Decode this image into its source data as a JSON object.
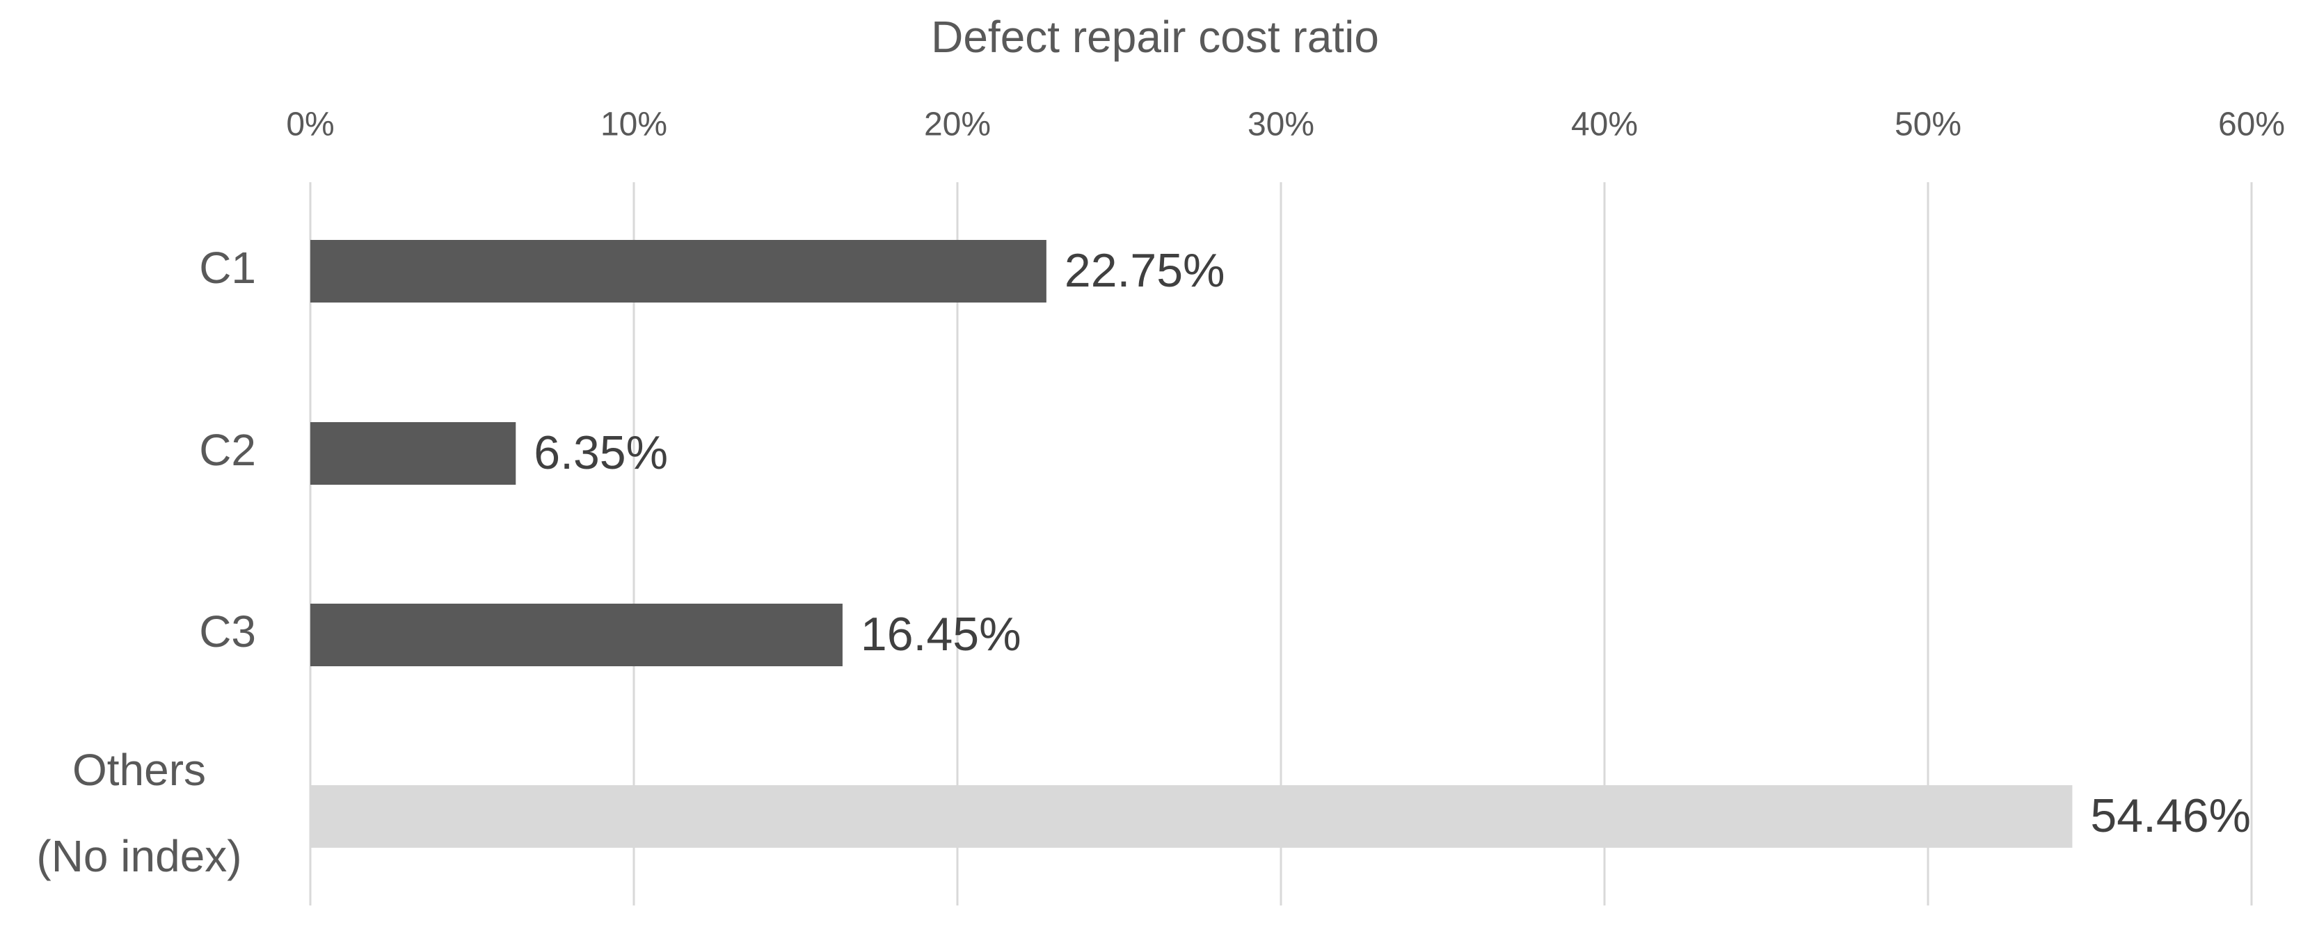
{
  "chart_data": {
    "type": "bar",
    "orientation": "horizontal",
    "title": "Defect repair cost ratio",
    "xlabel": "",
    "ylabel": "",
    "xlim": [
      0,
      60
    ],
    "x_ticks": [
      "0%",
      "10%",
      "20%",
      "30%",
      "40%",
      "50%",
      "60%"
    ],
    "x_tick_values": [
      0,
      10,
      20,
      30,
      40,
      50,
      60
    ],
    "categories": [
      [
        "C1"
      ],
      [
        "C2"
      ],
      [
        "C3"
      ],
      [
        "Others",
        "(No index)"
      ]
    ],
    "values": [
      22.75,
      6.35,
      16.45,
      54.46
    ],
    "data_labels": [
      "22.75%",
      "6.35%",
      "16.45%",
      "54.46%"
    ],
    "bar_colors": [
      "#595959",
      "#595959",
      "#595959",
      "#d9d9d9"
    ],
    "grid": true,
    "legend": "none",
    "colors": {
      "text": "#595959",
      "grid": "#d9d9d9",
      "dark_bar": "#595959",
      "light_bar": "#d9d9d9"
    }
  }
}
